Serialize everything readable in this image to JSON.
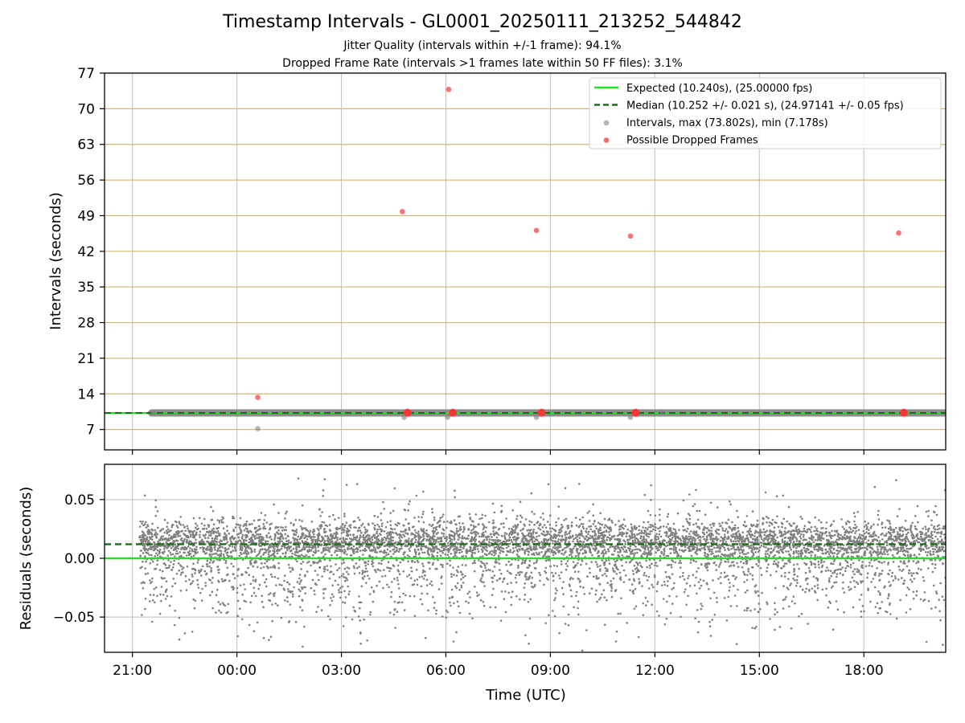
{
  "figure": {
    "title": "Timestamp Intervals - GL0001_20250111_213252_544842",
    "subtitle_jitter": "Jitter Quality (intervals within +/-1 frame): 94.1%",
    "subtitle_dropped": "Dropped Frame Rate (intervals >1 frames late within 50 FF files): 3.1%"
  },
  "colors": {
    "expected": "#22e022",
    "median": "#1a6e1a",
    "intervals": "#808080",
    "dropped": "#ff3333",
    "hgrid": "#d4b870",
    "vgrid": "#c8c8c8"
  },
  "chart_data": [
    {
      "type": "scatter",
      "panel": "top",
      "ylabel": "Intervals (seconds)",
      "ylim": [
        3,
        77
      ],
      "yticks": [
        7,
        14,
        21,
        28,
        35,
        42,
        49,
        56,
        63,
        70,
        77
      ],
      "x_range_hours": [
        20.2,
        44.35
      ],
      "grid": "on",
      "legend_placement": "top-right",
      "legend": {
        "expected": "Expected (10.240s), (25.00000 fps)",
        "median": "Median (10.252 +/- 0.021 s), (24.97141 +/- 0.05 fps)",
        "intervals": "Intervals, max (73.802s), min (7.178s)",
        "dropped": "Possible Dropped Frames"
      },
      "expected_interval": 10.24,
      "median_interval": 10.252,
      "series": [
        {
          "name": "Intervals, max (73.802s), min (7.178s)",
          "kind": "intervals",
          "x_hours": [
            21.6,
            24.6,
            28.8,
            30.05,
            32.6,
            35.3,
            36.2
          ],
          "y": [
            10.24,
            7.178,
            9.4,
            9.4,
            9.4,
            9.4,
            10.5
          ]
        },
        {
          "name": "Possible Dropped Frames",
          "kind": "dropped",
          "x_hours": [
            24.6,
            28.75,
            30.08,
            32.6,
            35.3,
            43.0,
            28.9,
            30.2,
            32.75,
            35.45,
            43.15
          ],
          "y": [
            13.3,
            49.8,
            73.8,
            46.1,
            45.0,
            45.6,
            10.3,
            10.3,
            10.3,
            10.3,
            10.3
          ]
        }
      ]
    },
    {
      "type": "scatter",
      "panel": "bottom",
      "xlabel": "Time (UTC)",
      "ylabel": "Residuals (seconds)",
      "ylim": [
        -0.08,
        0.08
      ],
      "yticks": [
        -0.05,
        0.0,
        0.05
      ],
      "ytick_labels": [
        "−0.05",
        "0.00",
        "0.05"
      ],
      "xticks_hours": [
        21,
        24,
        27,
        30,
        33,
        36,
        39,
        42
      ],
      "xtick_labels": [
        "21:00",
        "00:00",
        "03:00",
        "06:00",
        "09:00",
        "12:00",
        "15:00",
        "18:00"
      ],
      "x_range_hours": [
        20.2,
        44.35
      ],
      "data_x_start_hours": 21.2,
      "expected_residual": 0.0,
      "median_residual": 0.012,
      "residual_sd": 0.021,
      "sample_count": 6800
    }
  ]
}
